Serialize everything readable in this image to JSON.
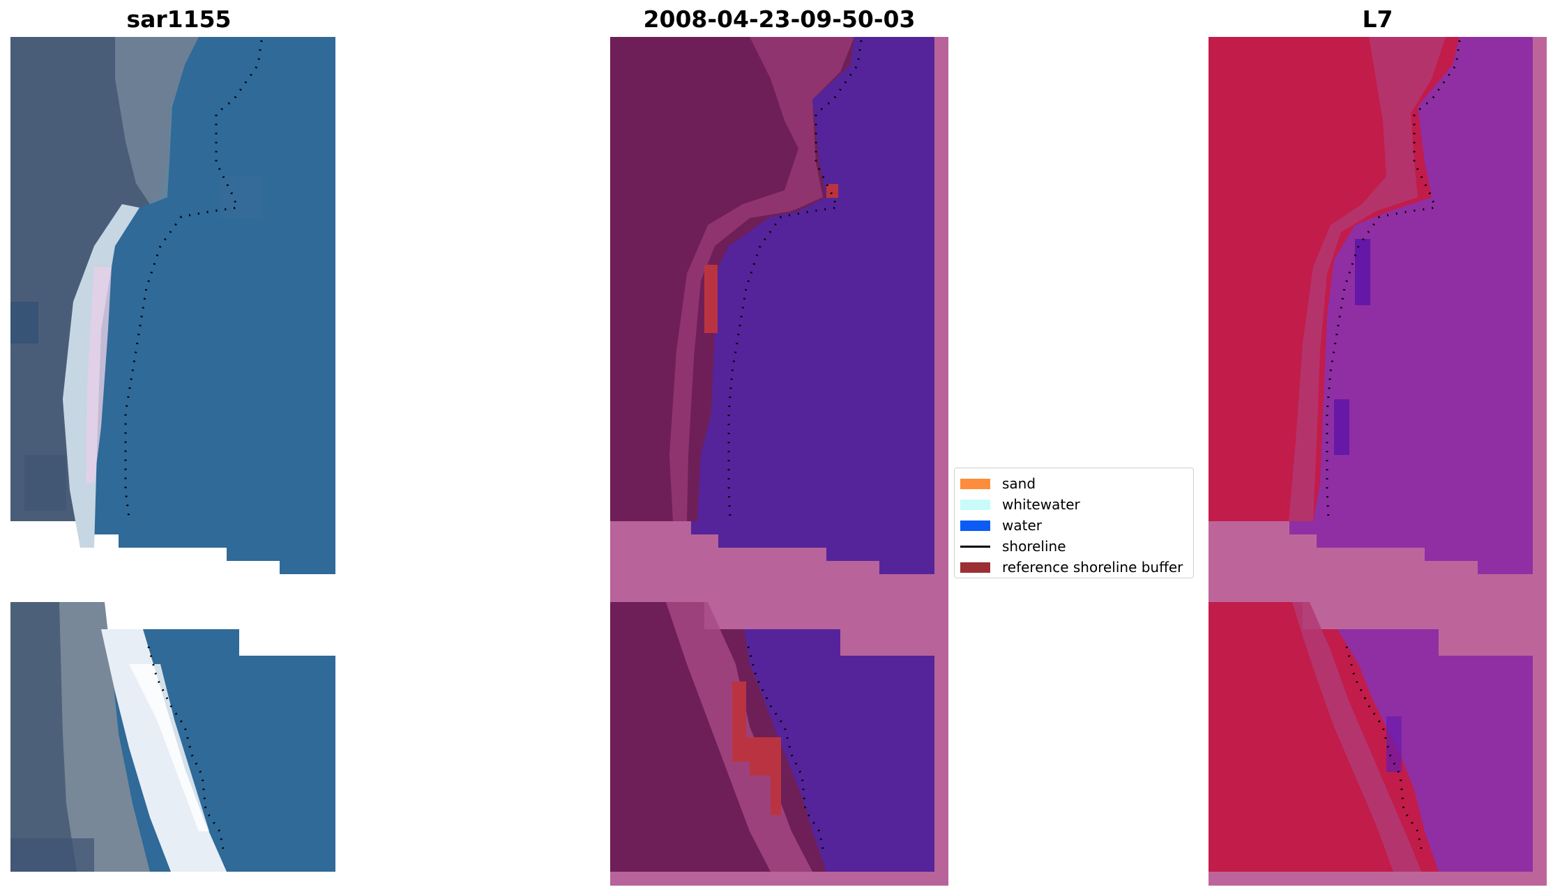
{
  "panels": [
    {
      "title": "sar1155",
      "kind": "rgb"
    },
    {
      "title": "2008-04-23-09-50-03",
      "kind": "classified"
    },
    {
      "title": "L7",
      "kind": "index"
    }
  ],
  "legend": {
    "items": [
      {
        "label": "sand",
        "color": "#fd8d3c",
        "shape": "patch"
      },
      {
        "label": "whitewater",
        "color": "#c9fbfb",
        "shape": "patch"
      },
      {
        "label": "water",
        "color": "#0a5cf5",
        "shape": "patch"
      },
      {
        "label": "shoreline",
        "color": "#000000",
        "shape": "line"
      },
      {
        "label": "reference shoreline buffer",
        "color": "#9b2f33",
        "shape": "patch"
      }
    ]
  },
  "colors": {
    "rgb_land": "#4a5d78",
    "rgb_water": "#2f6a98",
    "rgb_beach": "#dfe6ee",
    "class_land": "#6f1f58",
    "class_water": "#55249a",
    "class_nodata": "#b8639a",
    "class_buffer": "#b93440",
    "index_land": "#c21c4b",
    "index_water": "#8f2fa3",
    "index_nodata": "#bd659b",
    "shoreline": "#000000"
  }
}
